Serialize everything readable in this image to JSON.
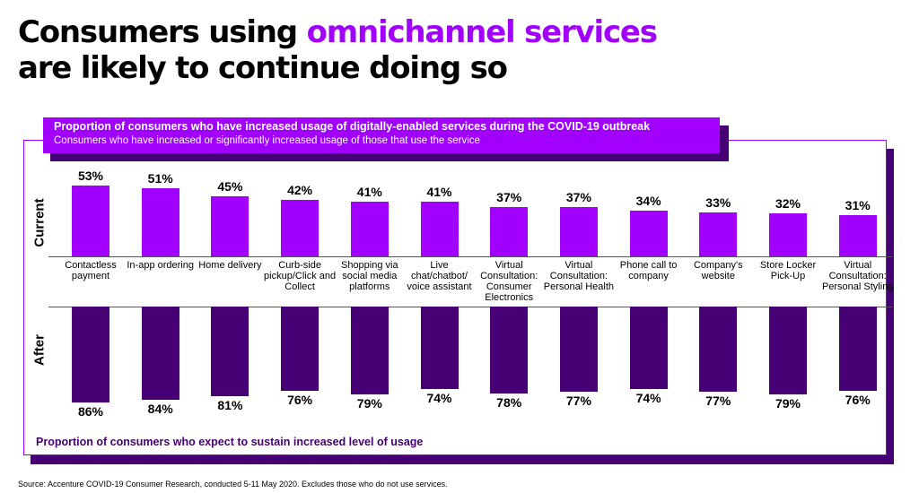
{
  "header": {
    "title_part1": "Consumers using ",
    "title_accent": "omnichannel services",
    "title_line2": "are likely to continue doing so"
  },
  "banner": {
    "title": "Proportion of consumers who have increased usage of digitally-enabled services during the COVID-19 outbreak",
    "subtitle": "Consumers who have increased or significantly increased usage of those that use the service"
  },
  "row_labels": {
    "current": "Current",
    "after": "After"
  },
  "bottom_caption": "Proportion of consumers who expect to sustain increased level of usage",
  "source": "Source: Accenture COVID-19 Consumer Research, conducted 5-11 May 2020. Excludes those who do not use services.",
  "colors": {
    "accent": "#a100ff",
    "dark": "#460073"
  },
  "chart_data": {
    "type": "bar",
    "categories": [
      "Contactless payment",
      "In-app ordering",
      "Home delivery",
      "Curb-side pickup/Click and Collect",
      "Shopping via social media platforms",
      "Live chat/chatbot/ voice assistant",
      "Virtual Consultation: Consumer Electronics",
      "Virtual Consultation: Personal Health",
      "Phone call to company",
      "Company's website",
      "Store Locker Pick-Up",
      "Virtual Consultation: Personal Styling"
    ],
    "series": [
      {
        "name": "Current",
        "values": [
          53,
          51,
          45,
          42,
          41,
          41,
          37,
          37,
          34,
          33,
          32,
          31
        ],
        "labels": [
          "53%",
          "51%",
          "45%",
          "42%",
          "41%",
          "41%",
          "37%",
          "37%",
          "34%",
          "33%",
          "32%",
          "31%"
        ]
      },
      {
        "name": "After",
        "values": [
          86,
          84,
          81,
          76,
          79,
          74,
          78,
          77,
          74,
          77,
          79,
          76
        ],
        "labels": [
          "86%",
          "84%",
          "81%",
          "76%",
          "79%",
          "74%",
          "78%",
          "77%",
          "74%",
          "77%",
          "79%",
          "76%"
        ]
      }
    ],
    "unit": "%"
  }
}
